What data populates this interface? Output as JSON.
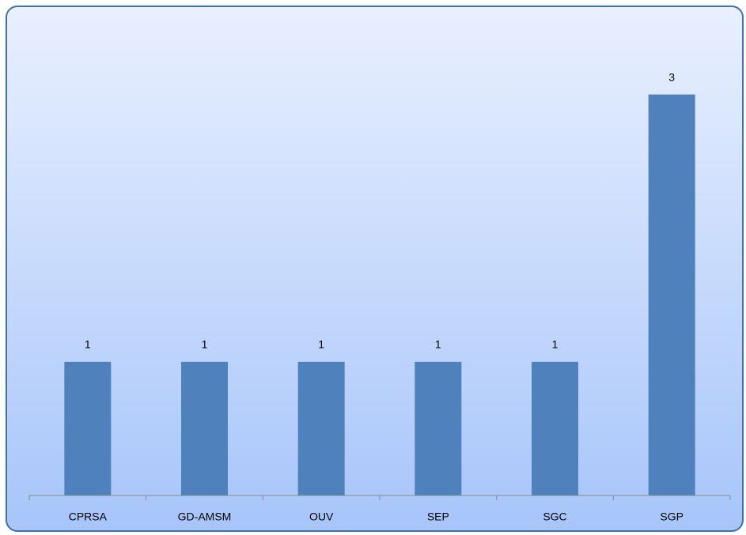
{
  "chart_data": {
    "type": "bar",
    "categories": [
      "CPRSA",
      "GD-AMSM",
      "OUV",
      "SEP",
      "SGC",
      "SGP"
    ],
    "values": [
      1,
      1,
      1,
      1,
      1,
      3
    ],
    "color": "#4f81bd",
    "ylim": [
      0,
      3.5
    ]
  }
}
